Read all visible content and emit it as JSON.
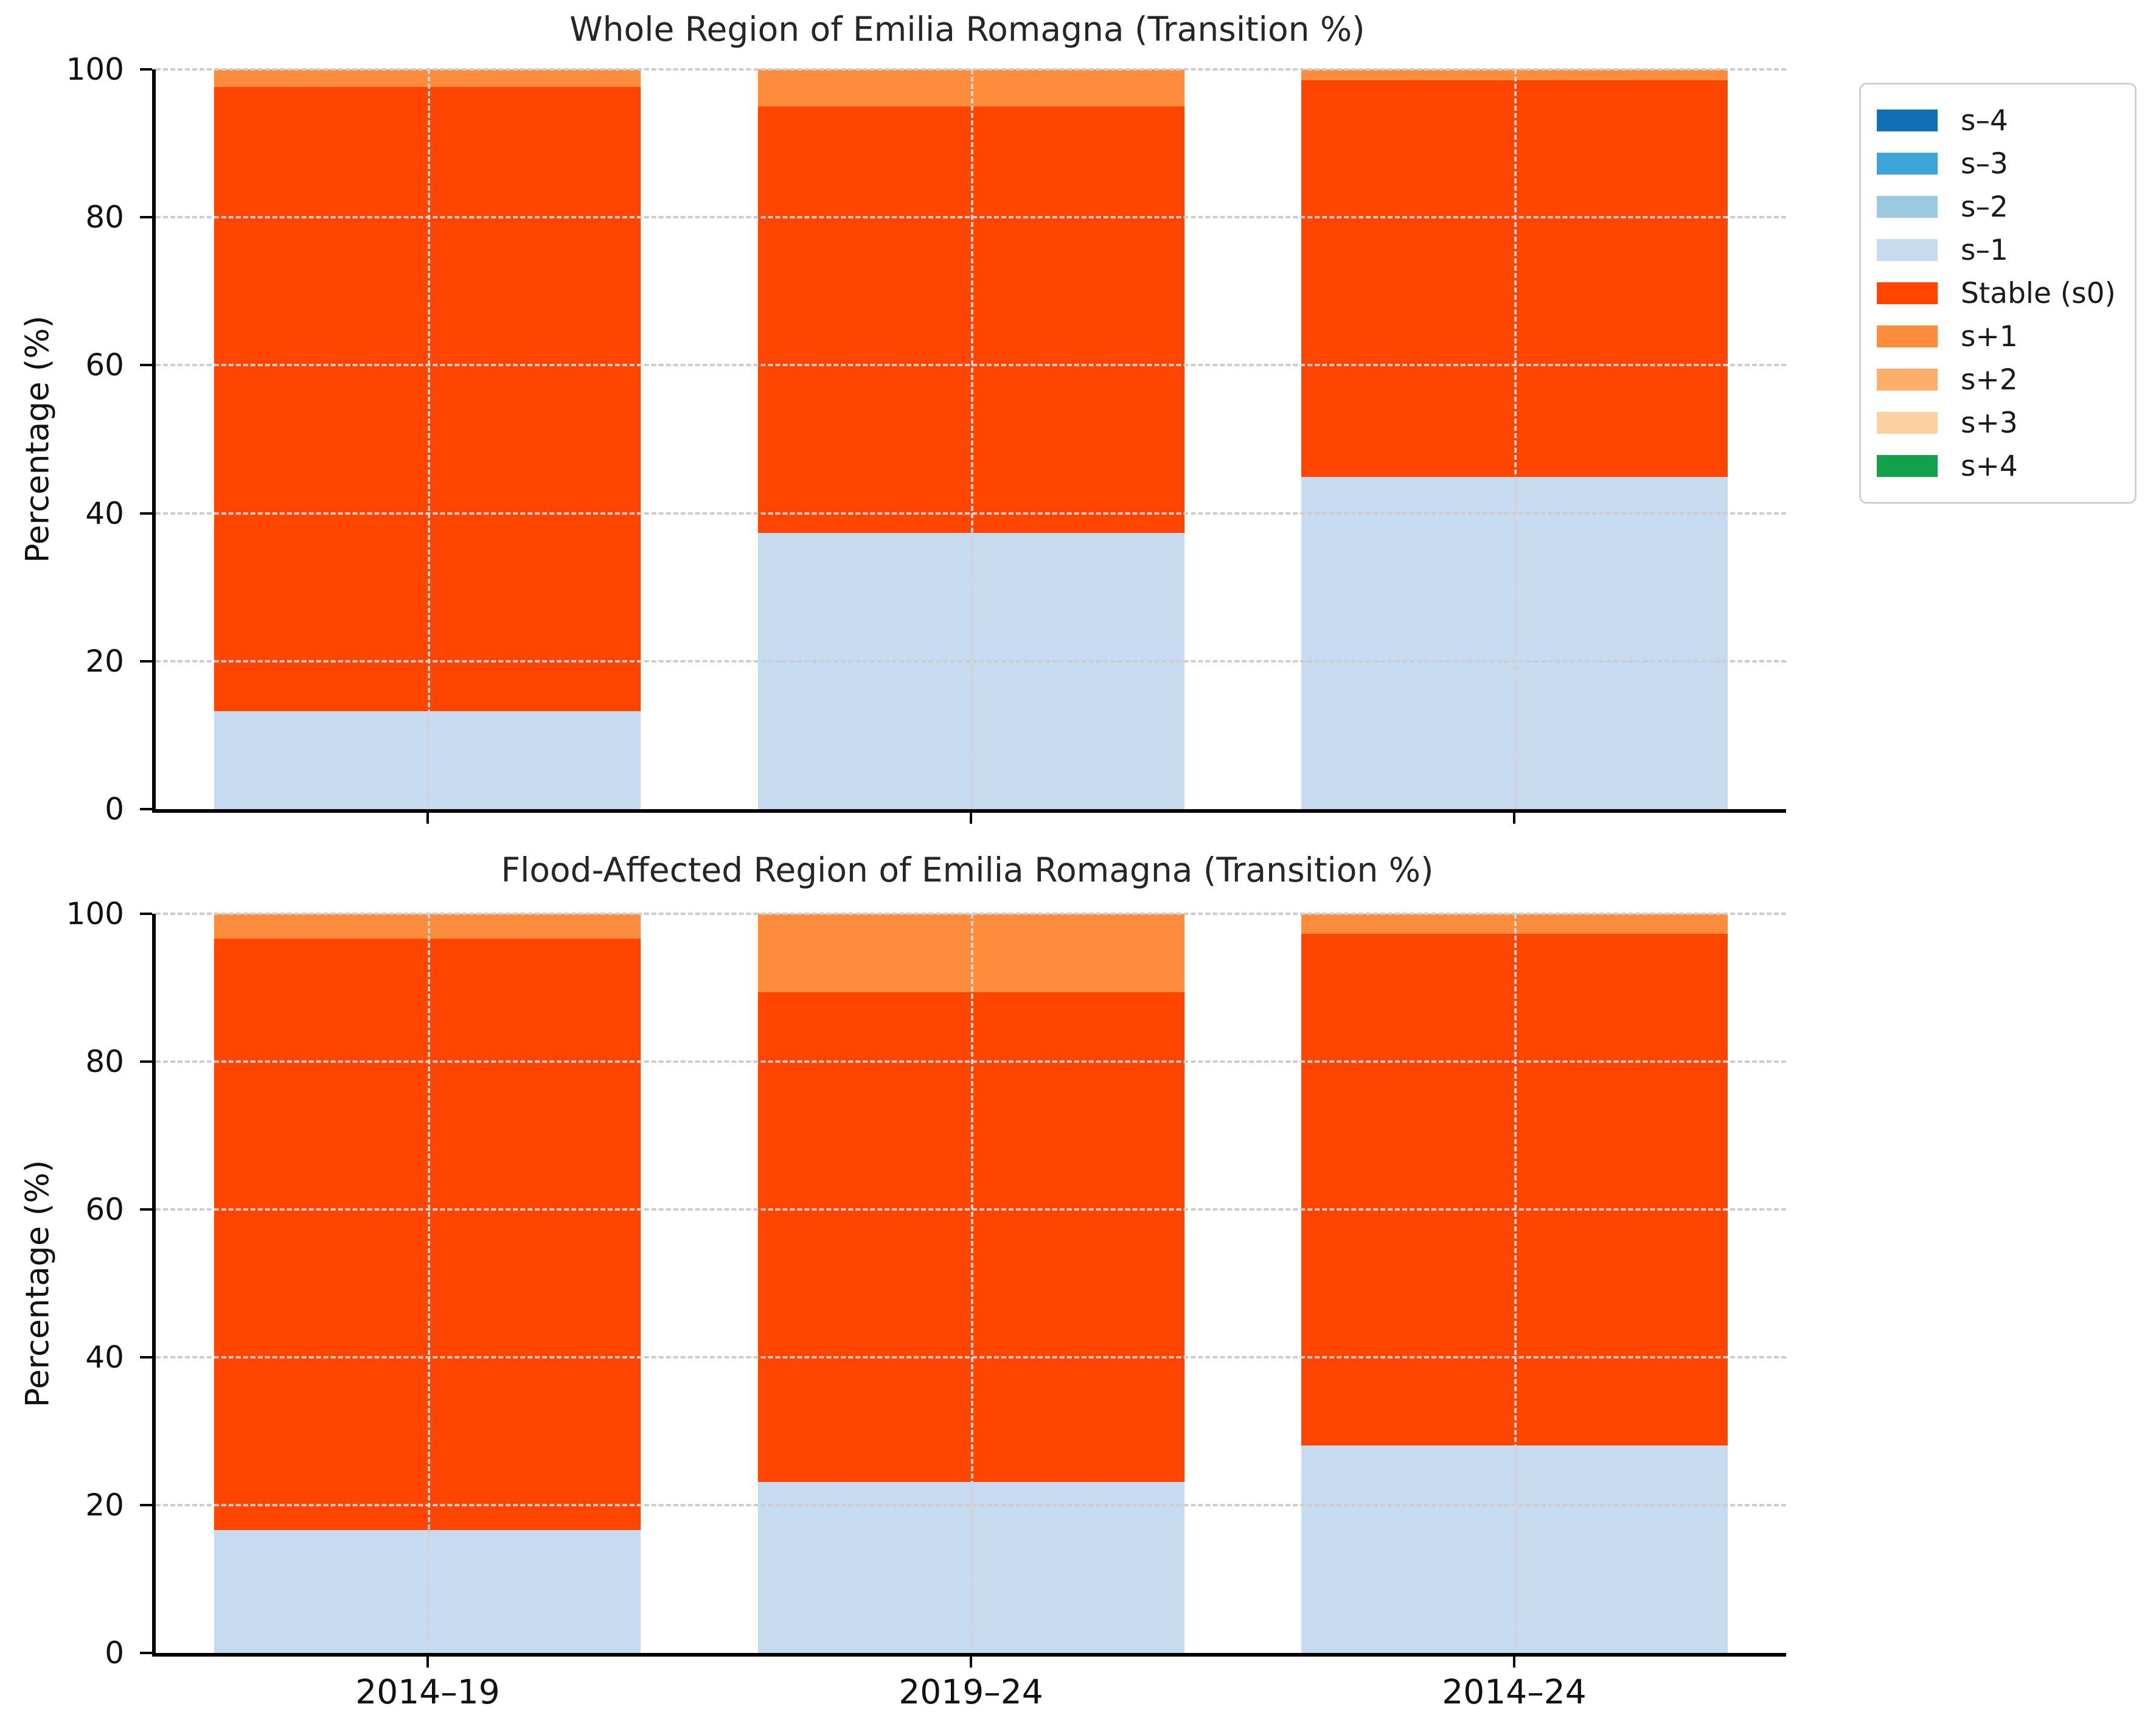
{
  "figure": {
    "background": "#ffffff"
  },
  "colors": {
    "s_minus_4": "#1170b5",
    "s_minus_3": "#3da5d9",
    "s_minus_2": "#9ecae1",
    "s_minus_1": "#c6dbef",
    "stable_s0": "#ff4500",
    "s_plus_1": "#fd8d3c",
    "s_plus_2": "#fdae6b",
    "s_plus_3": "#fdd0a2",
    "s_plus_4": "#12a14a",
    "gridline": "#cdcdcd",
    "axis": "#000000"
  },
  "legend": {
    "position": "outside-top-right",
    "entries": [
      {
        "label": "s–4",
        "color": "#1170b5"
      },
      {
        "label": "s–3",
        "color": "#3da5d9"
      },
      {
        "label": "s–2",
        "color": "#9ecae1"
      },
      {
        "label": "s–1",
        "color": "#c6dbef"
      },
      {
        "label": "Stable (s0)",
        "color": "#ff4500"
      },
      {
        "label": "s+1",
        "color": "#fd8d3c"
      },
      {
        "label": "s+2",
        "color": "#fdae6b"
      },
      {
        "label": "s+3",
        "color": "#fdd0a2"
      },
      {
        "label": "s+4",
        "color": "#12a14a"
      }
    ]
  },
  "chart_data": [
    {
      "type": "bar",
      "stacked": true,
      "title": "Whole Region of Emilia Romagna (Transition %)",
      "xlabel": "",
      "ylabel": "Percentage (%)",
      "categories": [
        "2014–19",
        "2019–24",
        "2014–24"
      ],
      "series": [
        {
          "name": "s–4",
          "color": "#1170b5",
          "values": [
            0,
            0,
            0
          ]
        },
        {
          "name": "s–3",
          "color": "#3da5d9",
          "values": [
            0,
            0,
            0
          ]
        },
        {
          "name": "s–2",
          "color": "#9ecae1",
          "values": [
            0,
            0,
            0
          ]
        },
        {
          "name": "s–1",
          "color": "#c6dbef",
          "values": [
            13.2,
            37.3,
            44.9
          ]
        },
        {
          "name": "Stable (s0)",
          "color": "#ff4500",
          "values": [
            84.4,
            57.7,
            53.6
          ]
        },
        {
          "name": "s+1",
          "color": "#fd8d3c",
          "values": [
            2.4,
            5.0,
            1.5
          ]
        },
        {
          "name": "s+2",
          "color": "#fdae6b",
          "values": [
            0,
            0,
            0
          ]
        },
        {
          "name": "s+3",
          "color": "#fdd0a2",
          "values": [
            0,
            0,
            0
          ]
        },
        {
          "name": "s+4",
          "color": "#12a14a",
          "values": [
            0,
            0,
            0
          ]
        }
      ],
      "ylim": [
        0,
        100
      ],
      "yticks": [
        0,
        20,
        40,
        60,
        80,
        100
      ],
      "grid": true,
      "show_xticklabels": false
    },
    {
      "type": "bar",
      "stacked": true,
      "title": "Flood-Affected Region of Emilia Romagna (Transition %)",
      "xlabel": "",
      "ylabel": "Percentage (%)",
      "categories": [
        "2014–19",
        "2019–24",
        "2014–24"
      ],
      "series": [
        {
          "name": "s–4",
          "color": "#1170b5",
          "values": [
            0,
            0,
            0
          ]
        },
        {
          "name": "s–3",
          "color": "#3da5d9",
          "values": [
            0,
            0,
            0
          ]
        },
        {
          "name": "s–2",
          "color": "#9ecae1",
          "values": [
            0,
            0,
            0
          ]
        },
        {
          "name": "s–1",
          "color": "#c6dbef",
          "values": [
            16.6,
            23.1,
            28.1
          ]
        },
        {
          "name": "Stable (s0)",
          "color": "#ff4500",
          "values": [
            80.0,
            66.3,
            69.2
          ]
        },
        {
          "name": "s+1",
          "color": "#fd8d3c",
          "values": [
            3.4,
            10.6,
            2.7
          ]
        },
        {
          "name": "s+2",
          "color": "#fdae6b",
          "values": [
            0,
            0,
            0
          ]
        },
        {
          "name": "s+3",
          "color": "#fdd0a2",
          "values": [
            0,
            0,
            0
          ]
        },
        {
          "name": "s+4",
          "color": "#12a14a",
          "values": [
            0,
            0,
            0
          ]
        }
      ],
      "ylim": [
        0,
        100
      ],
      "yticks": [
        0,
        20,
        40,
        60,
        80,
        100
      ],
      "grid": true,
      "show_xticklabels": true
    }
  ]
}
